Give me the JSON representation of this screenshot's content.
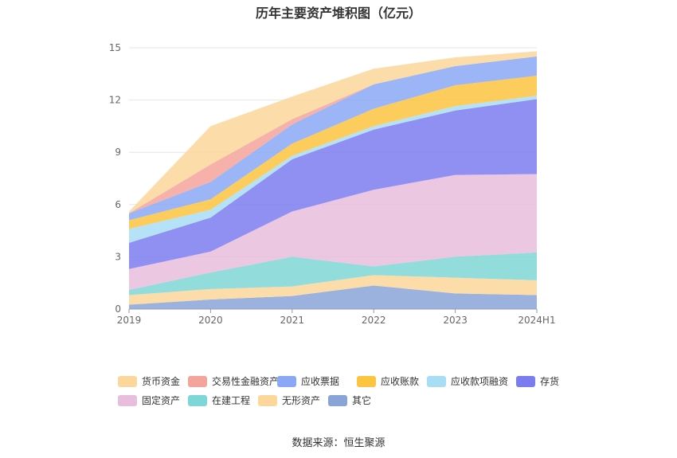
{
  "page_title": "历年主要资产堆积图（亿元）",
  "source": "数据来源：恒生聚源",
  "chart_data": {
    "type": "area",
    "stacked": true,
    "title": "历年主要资产堆积图（亿元）",
    "categories": [
      "2019",
      "2020",
      "2021",
      "2022",
      "2023",
      "2024H1"
    ],
    "ylim": [
      0,
      15
    ],
    "yticks": [
      0,
      3,
      6,
      9,
      12,
      15
    ],
    "grid": true,
    "legend_position": "bottom",
    "series": [
      {
        "name": "其它",
        "color": "#8aa4d8",
        "values": [
          0.25,
          0.55,
          0.75,
          1.35,
          0.9,
          0.8
        ]
      },
      {
        "name": "无形资产",
        "color": "#fcd79b",
        "values": [
          0.55,
          0.6,
          0.55,
          0.6,
          0.9,
          0.85
        ]
      },
      {
        "name": "在建工程",
        "color": "#7fd6d6",
        "values": [
          0.3,
          0.95,
          1.7,
          0.5,
          1.2,
          1.6
        ]
      },
      {
        "name": "固定资产",
        "color": "#e8bddd",
        "values": [
          1.2,
          1.2,
          2.6,
          4.4,
          4.7,
          4.5
        ]
      },
      {
        "name": "存货",
        "color": "#7b7cf0",
        "values": [
          1.5,
          1.95,
          3.0,
          3.45,
          3.7,
          4.3
        ]
      },
      {
        "name": "应收款项融资",
        "color": "#a8ddf6",
        "values": [
          0.8,
          0.45,
          0.2,
          0.2,
          0.25,
          0.2
        ]
      },
      {
        "name": "应收账款",
        "color": "#fcc43f",
        "values": [
          0.5,
          0.6,
          0.7,
          1.0,
          1.2,
          1.15
        ]
      },
      {
        "name": "应收票据",
        "color": "#8aa8f5",
        "values": [
          0.4,
          1.0,
          1.1,
          1.4,
          1.1,
          1.1
        ]
      },
      {
        "name": "交易性金融资产",
        "color": "#f5a49b",
        "values": [
          0.0,
          1.0,
          0.3,
          0.0,
          0.0,
          0.0
        ]
      },
      {
        "name": "货币资金",
        "color": "#fcd79b",
        "values": [
          0.1,
          2.2,
          1.3,
          0.9,
          0.5,
          0.3
        ]
      }
    ],
    "legend_order": [
      "货币资金",
      "交易性金融资产",
      "应收票据",
      "应收账款",
      "应收款项融资",
      "存货",
      "固定资产",
      "在建工程",
      "无形资产",
      "其它"
    ]
  }
}
